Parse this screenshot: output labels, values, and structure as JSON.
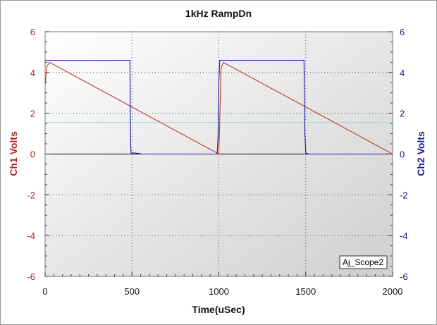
{
  "chart_data": {
    "type": "line",
    "title": "1kHz RampDn",
    "xlabel": "Time(uSec)",
    "ylabel_left": "Ch1 Volts",
    "ylabel_right": "Ch2 Volts",
    "xlim": [
      0,
      2000
    ],
    "ylim_left": [
      -6,
      6
    ],
    "ylim_right": [
      -6,
      6
    ],
    "x_ticks": [
      0,
      500,
      1000,
      1500,
      2000
    ],
    "y_ticks_left": [
      6,
      4,
      2,
      0,
      -2,
      -4,
      -6
    ],
    "y_ticks_right": [
      6,
      4,
      2,
      0,
      -2,
      -4,
      -6
    ],
    "grid": true,
    "reference_level": 1.55,
    "watermark": "Aj_Scope2",
    "colors": {
      "ch1": "#c0392b",
      "ch2": "#1a1aa8",
      "left_axis": "#b22222",
      "right_axis": "#1a1a8c",
      "grid": "#555555",
      "reference": "#9fd6d6",
      "plot_bg_light": "#ffffff",
      "plot_bg_dark": "#cfcfcf"
    },
    "series": [
      {
        "name": "Ch1",
        "axis": "left",
        "x": [
          0,
          10,
          25,
          1000,
          1005,
          1012,
          1025,
          2000
        ],
        "y": [
          3.4,
          4.3,
          4.5,
          0.0,
          1.5,
          4.2,
          4.5,
          0.0
        ]
      },
      {
        "name": "Ch2",
        "axis": "right",
        "x": [
          0,
          5,
          488,
          492,
          495,
          520,
          560,
          840,
          990,
          995,
          1000,
          1005,
          1010,
          1490,
          1495,
          1500,
          1520,
          1760,
          1960
        ],
        "y": [
          4.6,
          4.6,
          4.6,
          0.5,
          0.05,
          0.05,
          0.0,
          0.0,
          0.0,
          0.8,
          3.5,
          4.6,
          4.6,
          4.6,
          1.0,
          0.05,
          0.0,
          0.0,
          0.0
        ]
      }
    ]
  }
}
